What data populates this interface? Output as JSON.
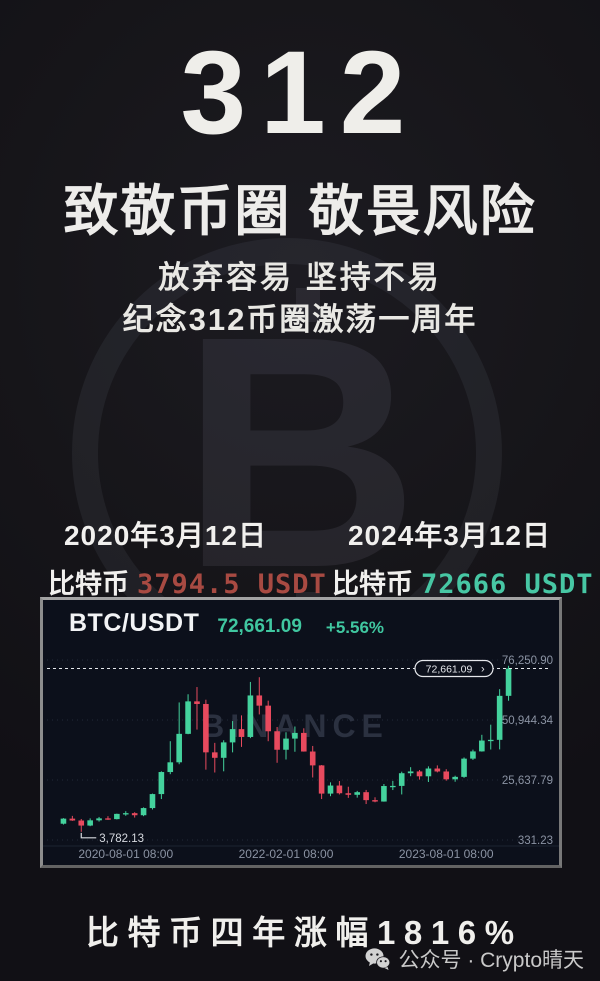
{
  "poster": {
    "title": "312",
    "headline": "致敬币圈 敬畏风险",
    "subline1": "放弃容易 坚持不易",
    "subline2": "纪念312币圈激荡一周年",
    "footer_banner": "比特币四年涨幅1816%",
    "wechat_label": "公众号 · Crypto晴天",
    "watermark_symbol": "B"
  },
  "comparison": {
    "left": {
      "date": "2020年3月12日",
      "coin": "比特币",
      "price": "3794.5 USDT",
      "color": "#a84a42"
    },
    "right": {
      "date": "2024年3月12日",
      "coin": "比特币",
      "price": "72666 USDT",
      "color": "#47c7a4"
    }
  },
  "chart_data": {
    "type": "candlestick",
    "symbol": "BTC/USDT",
    "last_price": "72,661.09",
    "change_pct": "+5.56%",
    "interval": "monthly",
    "watermark": "BINANCE",
    "price_line": {
      "label": "72,661.09",
      "chevron": "›",
      "value": 72661.09
    },
    "low_label": {
      "text": "3,782.13",
      "value": 3782.13,
      "candle_index": 2
    },
    "y_axis": [
      {
        "label": "76,250.90",
        "value": 76250.9
      },
      {
        "label": "50,944.34",
        "value": 50944.34
      },
      {
        "label": "25,637.79",
        "value": 25637.79
      },
      {
        "label": "331.23",
        "value": 331.23
      }
    ],
    "ylim": [
      331.23,
      76250.9
    ],
    "x_ticks": [
      "2020-08-01 08:00",
      "2022-02-01 08:00",
      "2023-08-01 08:00"
    ],
    "x_tick_indices": [
      7,
      25,
      43
    ],
    "start_month": "2020-01",
    "colors": {
      "up": "#44d29d",
      "down": "#e84a5e",
      "axis_text": "#8b93a3",
      "grid": "#222a3a",
      "price_line": "#e6e8ec",
      "watermark": "#2b3140",
      "chart_bg": "#0c101b"
    },
    "candles": [
      [
        7200,
        9550,
        6850,
        9350
      ],
      [
        9350,
        10500,
        8400,
        8550
      ],
      [
        8550,
        9200,
        3782,
        6420
      ],
      [
        6420,
        9450,
        6150,
        8630
      ],
      [
        8630,
        10050,
        8100,
        9450
      ],
      [
        9450,
        10380,
        8830,
        9140
      ],
      [
        9140,
        11450,
        9000,
        11350
      ],
      [
        11350,
        12480,
        10550,
        11650
      ],
      [
        11650,
        12050,
        9800,
        10780
      ],
      [
        10780,
        14100,
        10380,
        13800
      ],
      [
        13800,
        19900,
        13200,
        19700
      ],
      [
        19700,
        29300,
        17600,
        29000
      ],
      [
        29000,
        42000,
        28100,
        33100
      ],
      [
        33100,
        58350,
        32300,
        45100
      ],
      [
        45100,
        61800,
        44950,
        58800
      ],
      [
        58800,
        64850,
        46900,
        57700
      ],
      [
        57700,
        59500,
        30000,
        37300
      ],
      [
        37300,
        41300,
        28800,
        35000
      ],
      [
        35000,
        42400,
        29300,
        41500
      ],
      [
        41500,
        50500,
        37300,
        47100
      ],
      [
        47100,
        52900,
        39600,
        43800
      ],
      [
        43800,
        67000,
        43300,
        61300
      ],
      [
        61300,
        69000,
        53300,
        57000
      ],
      [
        57000,
        59100,
        42000,
        46200
      ],
      [
        46200,
        47990,
        32900,
        38400
      ],
      [
        38400,
        45800,
        34300,
        43100
      ],
      [
        43100,
        48200,
        37550,
        45500
      ],
      [
        45500,
        47450,
        37600,
        37650
      ],
      [
        37650,
        40000,
        26700,
        31800
      ],
      [
        31800,
        31950,
        17600,
        19900
      ],
      [
        19900,
        24650,
        18800,
        23300
      ],
      [
        23300,
        25200,
        19550,
        20050
      ],
      [
        20050,
        22800,
        18100,
        19400
      ],
      [
        19400,
        21050,
        18200,
        20500
      ],
      [
        20500,
        21450,
        15500,
        17150
      ],
      [
        17150,
        18350,
        16250,
        16550
      ],
      [
        16550,
        23950,
        16500,
        23100
      ],
      [
        23100,
        25250,
        21400,
        23150
      ],
      [
        23150,
        29150,
        19550,
        28500
      ],
      [
        28500,
        31050,
        27250,
        29250
      ],
      [
        29250,
        29850,
        25800,
        27200
      ],
      [
        27200,
        31400,
        24800,
        30480
      ],
      [
        30480,
        31800,
        28850,
        29230
      ],
      [
        29230,
        30200,
        25350,
        25930
      ],
      [
        25930,
        27450,
        24900,
        26960
      ],
      [
        26960,
        35150,
        26550,
        34650
      ],
      [
        34650,
        38450,
        34100,
        37700
      ],
      [
        37700,
        44700,
        37600,
        42280
      ],
      [
        42280,
        48970,
        38500,
        42580
      ],
      [
        42580,
        63950,
        38550,
        61130
      ],
      [
        61130,
        73800,
        59060,
        72661
      ]
    ]
  }
}
